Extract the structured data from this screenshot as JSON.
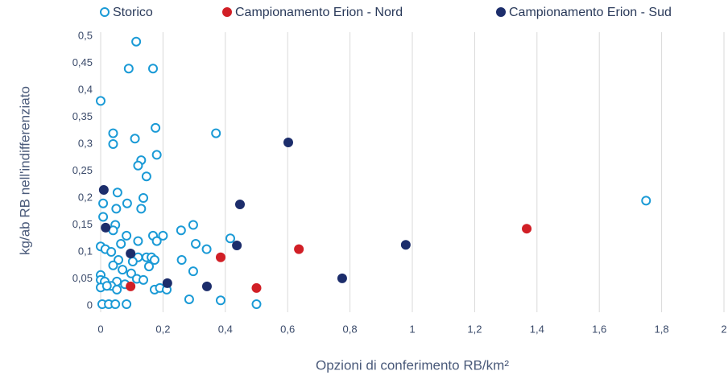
{
  "chart_data": {
    "type": "scatter",
    "x_label": "Opzioni di conferimento RB/km²",
    "y_label": "kg/ab RB nell'indifferenziato",
    "xlim": [
      0,
      2
    ],
    "ylim": [
      0,
      0.5
    ],
    "xticks": [
      0,
      {
        "value": 0.2,
        "label": "0,2"
      },
      {
        "value": 0.4,
        "label": "0,4"
      },
      {
        "value": 0.6,
        "label": "0,6"
      },
      {
        "value": 0.8,
        "label": "0,8"
      },
      1,
      {
        "value": 1.2,
        "label": "1,2"
      },
      {
        "value": 1.4,
        "label": "1,4"
      },
      {
        "value": 1.6,
        "label": "1,6"
      },
      {
        "value": 1.8,
        "label": "1,8"
      },
      2
    ],
    "yticks": [
      0,
      {
        "value": 0.05,
        "label": "0,05"
      },
      {
        "value": 0.1,
        "label": "0,1"
      },
      {
        "value": 0.15,
        "label": "0,15"
      },
      {
        "value": 0.2,
        "label": "0,2"
      },
      {
        "value": 0.25,
        "label": "0,25"
      },
      {
        "value": 0.3,
        "label": "0,3"
      },
      {
        "value": 0.35,
        "label": "0,35"
      },
      {
        "value": 0.4,
        "label": "0,4"
      },
      {
        "value": 0.45,
        "label": "0,45"
      },
      {
        "value": 0.5,
        "label": "0,5"
      }
    ],
    "grid": "x",
    "legend": "top",
    "series": [
      {
        "name": "Storico",
        "color": "#1a9ad6",
        "marker": "open",
        "x": [
          0.114,
          0.09,
          0.168,
          0,
          0.04,
          0.11,
          0.176,
          0.37,
          0.04,
          0.13,
          0.18,
          0.12,
          0.147,
          0.054,
          0.137,
          0.008,
          0.085,
          0.13,
          0.05,
          0.008,
          1.75,
          0.047,
          0.297,
          0.258,
          0.04,
          0.083,
          0.168,
          0.2,
          0.416,
          0.12,
          0.18,
          0.305,
          0.34,
          0.065,
          0,
          0.015,
          0.034,
          0.12,
          0.147,
          0.163,
          0.173,
          0.26,
          0.057,
          0.103,
          0.155,
          0.04,
          0.07,
          0.098,
          0.297,
          0,
          0,
          0.116,
          0.137,
          0.013,
          0.052,
          0.034,
          0.078,
          0,
          0.02,
          0.052,
          0.173,
          0.19,
          0.212,
          0.284,
          0.385,
          0.005,
          0.026,
          0.047,
          0.083,
          0.5
        ],
        "values": [
          0.49,
          0.44,
          0.44,
          0.38,
          0.32,
          0.31,
          0.33,
          0.32,
          0.3,
          0.27,
          0.28,
          0.26,
          0.24,
          0.21,
          0.2,
          0.19,
          0.19,
          0.18,
          0.18,
          0.165,
          0.195,
          0.15,
          0.15,
          0.14,
          0.14,
          0.13,
          0.13,
          0.13,
          0.125,
          0.12,
          0.12,
          0.115,
          0.105,
          0.115,
          0.11,
          0.105,
          0.1,
          0.09,
          0.09,
          0.09,
          0.085,
          0.085,
          0.085,
          0.082,
          0.073,
          0.075,
          0.067,
          0.06,
          0.064,
          0.057,
          0.048,
          0.05,
          0.048,
          0.045,
          0.045,
          0.037,
          0.04,
          0.034,
          0.037,
          0.03,
          0.03,
          0.033,
          0.03,
          0.012,
          0.01,
          0.003,
          0.003,
          0.003,
          0.003,
          0.003
        ]
      },
      {
        "name": "Campionamento Erion - Nord",
        "color": "#d11f26",
        "marker": "filled",
        "x": [
          0.096,
          0.385,
          0.5,
          0.636,
          1.367
        ],
        "values": [
          0.036,
          0.09,
          0.033,
          0.105,
          0.143
        ]
      },
      {
        "name": "Campionamento Erion - Sud",
        "color": "#1c2d6b",
        "marker": "filled",
        "x": [
          0.01,
          0.016,
          0.096,
          0.214,
          0.341,
          0.437,
          0.447,
          0.602,
          0.979,
          0.775
        ],
        "values": [
          0.215,
          0.145,
          0.097,
          0.042,
          0.036,
          0.112,
          0.188,
          0.303,
          0.113,
          0.051
        ]
      }
    ]
  }
}
